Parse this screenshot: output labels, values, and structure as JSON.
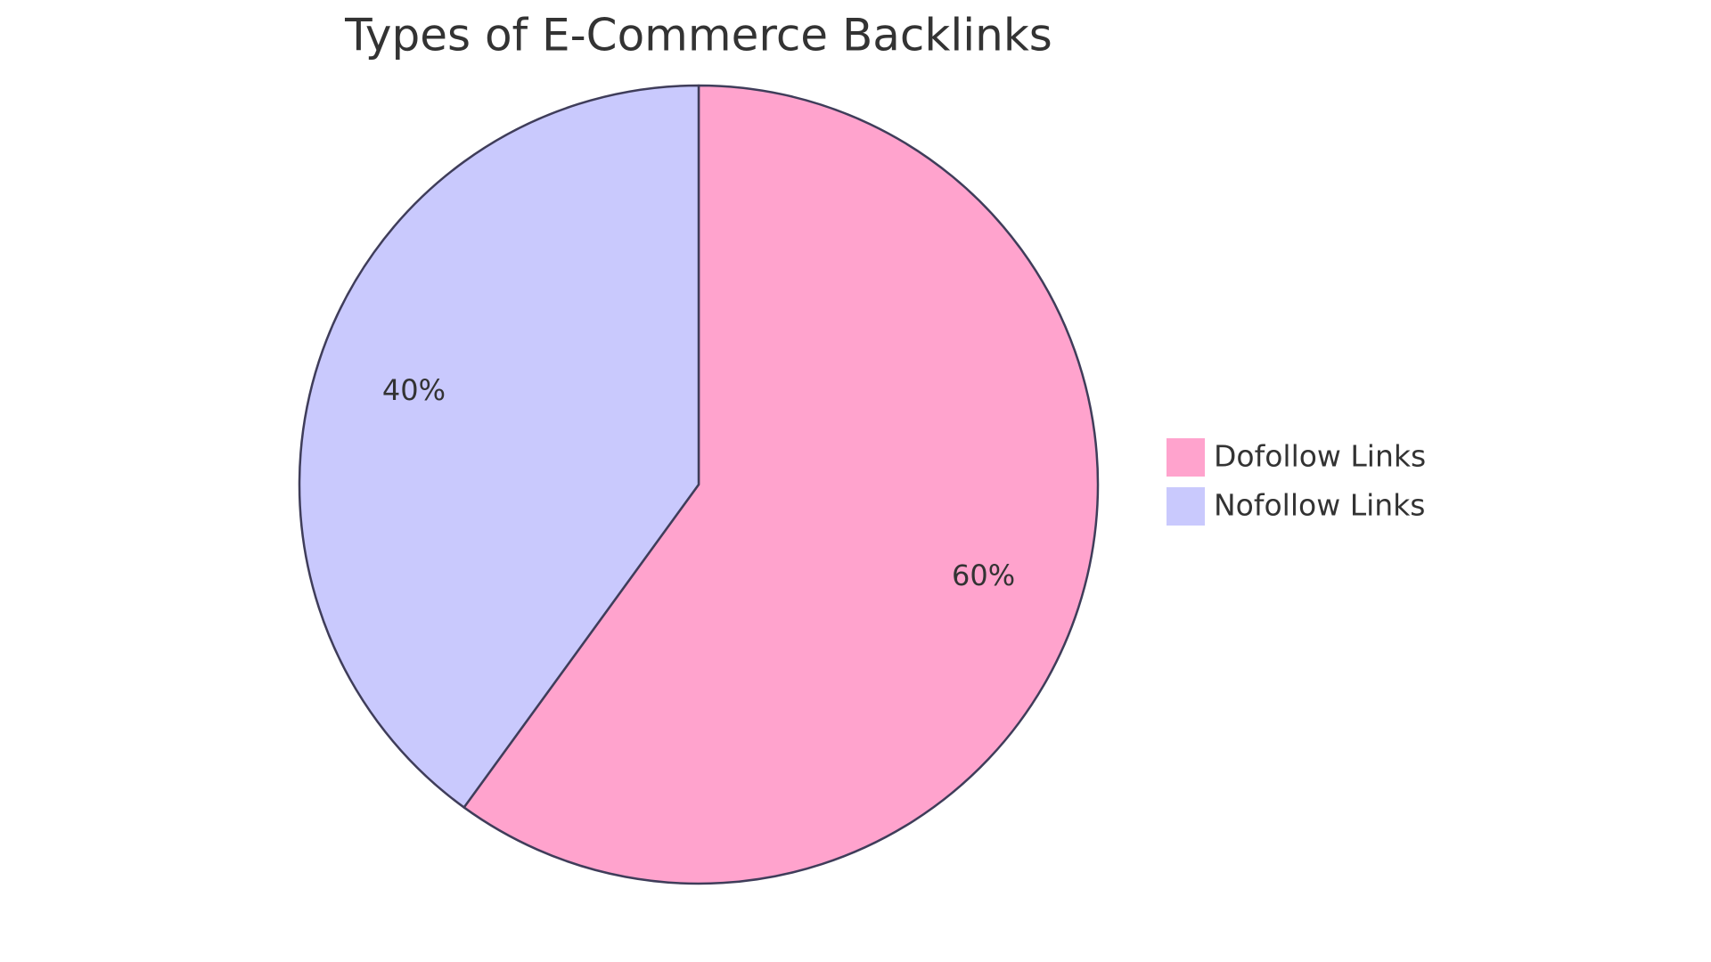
{
  "chart_data": {
    "type": "pie",
    "title": "Types of E-Commerce Backlinks",
    "categories": [
      "Dofollow Links",
      "Nofollow Links"
    ],
    "values": [
      60,
      40
    ],
    "value_labels": [
      "60%",
      "40%"
    ],
    "colors": [
      "#ffa3cd",
      "#c9c9fd"
    ],
    "legend": "right"
  }
}
